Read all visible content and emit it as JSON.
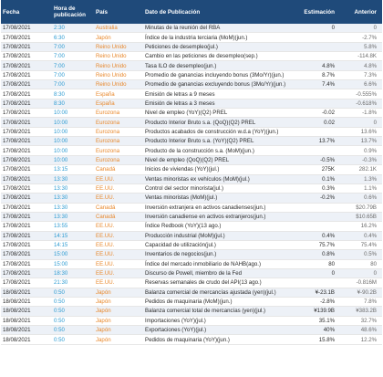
{
  "headers": {
    "fecha": "Fecha",
    "hora_line1": "Hora de",
    "hora_line2": "publicación",
    "pais": "País",
    "dato": "Dato de Publicación",
    "estimacion": "Estimación",
    "anterior": "Anterior"
  },
  "rows": [
    {
      "fecha": "17/08/2021",
      "hora": "2:30",
      "pais": "Australia",
      "dato": "Minutas de la reunión del RBA",
      "est": "0",
      "ant": "0"
    },
    {
      "fecha": "17/08/2021",
      "hora": "6:30",
      "pais": "Japón",
      "dato": "Índice de la industria terciaria (MoM)(jun.)",
      "est": "",
      "ant": "-2.7%"
    },
    {
      "fecha": "17/08/2021",
      "hora": "7:00",
      "pais": "Reino Unido",
      "dato": "Peticiones de desempleo(jul.)",
      "est": "",
      "ant": "5.8%"
    },
    {
      "fecha": "17/08/2021",
      "hora": "7:00",
      "pais": "Reino Unido",
      "dato": "Cambio en las peticiones de desempleo(sep.)",
      "est": "",
      "ant": "-114.8K"
    },
    {
      "fecha": "17/08/2021",
      "hora": "7:00",
      "pais": "Reino Unido",
      "dato": "Tasa ILO de desempleo(jun.)",
      "est": "4.8%",
      "ant": "4.8%"
    },
    {
      "fecha": "17/08/2021",
      "hora": "7:00",
      "pais": "Reino Unido",
      "dato": "Promedio de ganancias incluyendo bonus (3Mo/Yr)(jun.)",
      "est": "8.7%",
      "ant": "7.3%"
    },
    {
      "fecha": "17/08/2021",
      "hora": "7:00",
      "pais": "Reino Unido",
      "dato": "Promedio de ganancias excluyendo bonus (3Mo/Yr)(jun.)",
      "est": "7.4%",
      "ant": "6.6%"
    },
    {
      "fecha": "17/08/2021",
      "hora": "8:30",
      "pais": "España",
      "dato": "Emisión de letras a 9 meses",
      "est": "",
      "ant": "-0.555%"
    },
    {
      "fecha": "17/08/2021",
      "hora": "8:30",
      "pais": "España",
      "dato": "Emisión de letras a 3 meses",
      "est": "",
      "ant": "-0.618%"
    },
    {
      "fecha": "17/08/2021",
      "hora": "10:00",
      "pais": "Eurozona",
      "dato": "Nivel de empleo (YoY)(Q2) PREL",
      "est": "-0.02",
      "ant": "-1.8%"
    },
    {
      "fecha": "17/08/2021",
      "hora": "10:00",
      "pais": "Eurozona",
      "dato": "Producto Interior Bruto s.a. (QoQ)(Q2) PREL",
      "est": "0.02",
      "ant": "0"
    },
    {
      "fecha": "17/08/2021",
      "hora": "10:00",
      "pais": "Eurozona",
      "dato": "Productos acabados de construcción w.d.a (YoY)(jun.)",
      "est": "",
      "ant": "13.6%"
    },
    {
      "fecha": "17/08/2021",
      "hora": "10:00",
      "pais": "Eurozona",
      "dato": "Producto Interior Bruto s.a. (YoY)(Q2) PREL",
      "est": "13.7%",
      "ant": "13.7%"
    },
    {
      "fecha": "17/08/2021",
      "hora": "10:00",
      "pais": "Eurozona",
      "dato": "Producto de la construcción s.a. (MoM)(jun.)",
      "est": "",
      "ant": "0.9%"
    },
    {
      "fecha": "17/08/2021",
      "hora": "10:00",
      "pais": "Eurozona",
      "dato": "Nivel de empleo (QoQ)(Q2) PREL",
      "est": "-0.5%",
      "ant": "-0.3%"
    },
    {
      "fecha": "17/08/2021",
      "hora": "13:15",
      "pais": "Canadá",
      "dato": "Inicios de viviendas (YoY)(jul.)",
      "est": "275K",
      "ant": "282.1K"
    },
    {
      "fecha": "17/08/2021",
      "hora": "13:30",
      "pais": "EE.UU.",
      "dato": "Ventas minoristas ex vehículos (MoM)(jul.)",
      "est": "0.1%",
      "ant": "1.3%"
    },
    {
      "fecha": "17/08/2021",
      "hora": "13:30",
      "pais": "EE.UU.",
      "dato": "Control del sector minorista(jul.)",
      "est": "0.3%",
      "ant": "1.1%"
    },
    {
      "fecha": "17/08/2021",
      "hora": "13:30",
      "pais": "EE.UU.",
      "dato": "Ventas minoristas (MoM)(jul.)",
      "est": "-0.2%",
      "ant": "0.6%"
    },
    {
      "fecha": "17/08/2021",
      "hora": "13:30",
      "pais": "Canadá",
      "dato": "Inversión extranjera en activos canadienses(jun.)",
      "est": "",
      "ant": "$20.79B"
    },
    {
      "fecha": "17/08/2021",
      "hora": "13:30",
      "pais": "Canadá",
      "dato": "Inversión canadiense en activos extranjeros(jun.)",
      "est": "",
      "ant": "$10.65B"
    },
    {
      "fecha": "17/08/2021",
      "hora": "13:55",
      "pais": "EE.UU.",
      "dato": "Índice Redbook (YoY)(13 ago.)",
      "est": "",
      "ant": "16.2%"
    },
    {
      "fecha": "17/08/2021",
      "hora": "14:15",
      "pais": "EE.UU.",
      "dato": "Producción industrial (MoM)(jul.)",
      "est": "0.4%",
      "ant": "0.4%"
    },
    {
      "fecha": "17/08/2021",
      "hora": "14:15",
      "pais": "EE.UU.",
      "dato": "Capacidad de utilización(jul.)",
      "est": "75.7%",
      "ant": "75.4%"
    },
    {
      "fecha": "17/08/2021",
      "hora": "15:00",
      "pais": "EE.UU.",
      "dato": "Inventarios de negocios(jun.)",
      "est": "0.8%",
      "ant": "0.5%"
    },
    {
      "fecha": "17/08/2021",
      "hora": "15:00",
      "pais": "EE.UU.",
      "dato": "Índice del mercado inmobiliario de NAHB(ago.)",
      "est": "80",
      "ant": "80"
    },
    {
      "fecha": "17/08/2021",
      "hora": "18:30",
      "pais": "EE.UU.",
      "dato": "Discurso de Powell, miembro de la Fed",
      "est": "0",
      "ant": "0"
    },
    {
      "fecha": "17/08/2021",
      "hora": "21:30",
      "pais": "EE.UU.",
      "dato": "Reservas semanales de crudo del API(13 ago.)",
      "est": "",
      "ant": "-0.816M"
    },
    {
      "fecha": "18/08/2021",
      "hora": "0:50",
      "pais": "Japón",
      "dato": "Balanza comercial de mercancías ajustada (yen)(jul.)",
      "est": "¥-23.1B",
      "ant": "¥-90.2B"
    },
    {
      "fecha": "18/08/2021",
      "hora": "0:50",
      "pais": "Japón",
      "dato": "Pedidos de maquinaria (MoM)(jun.)",
      "est": "-2.8%",
      "ant": "7.8%"
    },
    {
      "fecha": "18/08/2021",
      "hora": "0:50",
      "pais": "Japón",
      "dato": "Balanza comercial total de mercancías (yen)(jul.)",
      "est": "¥139.9B",
      "ant": "¥383.2B"
    },
    {
      "fecha": "18/08/2021",
      "hora": "0:50",
      "pais": "Japón",
      "dato": "Importaciones (YoY)(jul.)",
      "est": "35.1%",
      "ant": "32.7%"
    },
    {
      "fecha": "18/08/2021",
      "hora": "0:50",
      "pais": "Japón",
      "dato": "Exportaciones (YoY)(jul.)",
      "est": "40%",
      "ant": "48.6%"
    },
    {
      "fecha": "18/08/2021",
      "hora": "0:50",
      "pais": "Japón",
      "dato": "Pedidos de maquinaria (YoY)(jun.)",
      "est": "15.8%",
      "ant": "12.2%"
    }
  ]
}
